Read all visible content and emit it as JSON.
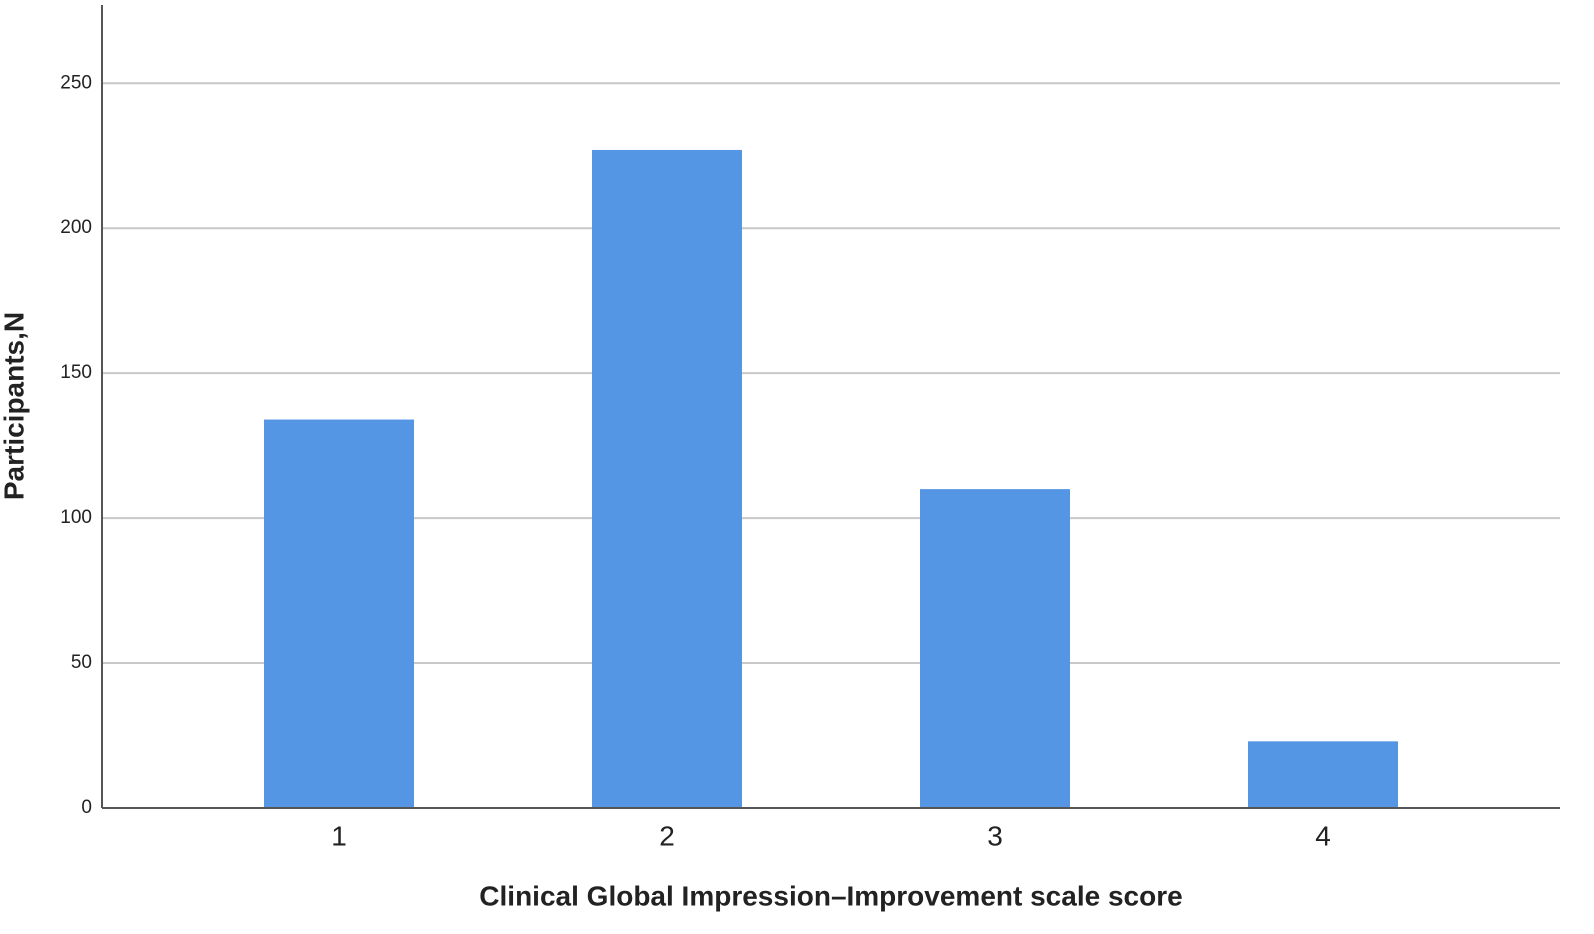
{
  "chart_data": {
    "type": "bar",
    "x_label": "Clinical Global Impression–Improvement scale score",
    "y_label": "Participants,N",
    "categories": [
      "1",
      "2",
      "3",
      "4"
    ],
    "values": [
      134,
      227,
      110,
      23
    ],
    "color": "#5596e4",
    "ylim": [
      0,
      277
    ],
    "yticks": [
      0,
      50,
      100,
      150,
      200,
      250
    ],
    "grid": true
  }
}
